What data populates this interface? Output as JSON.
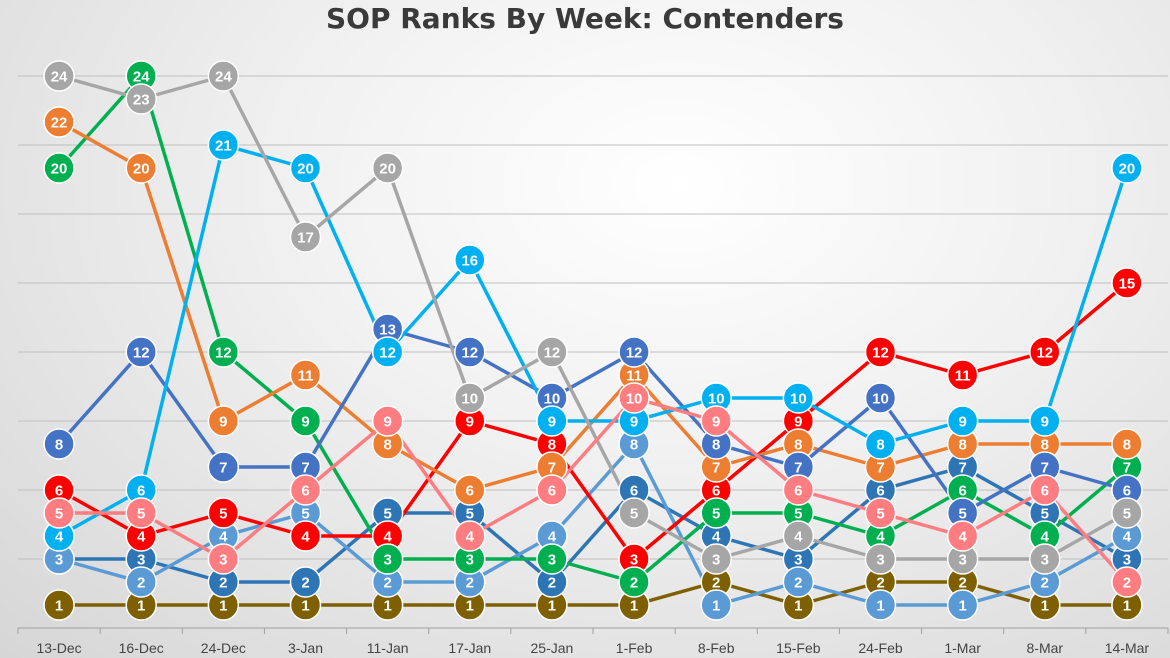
{
  "chart_data": {
    "type": "line",
    "title": "SOP Ranks By Week: Contenders",
    "xlabel": "",
    "ylabel": "",
    "categories": [
      "13-Dec",
      "16-Dec",
      "24-Dec",
      "3-Jan",
      "11-Jan",
      "17-Jan",
      "25-Jan",
      "1-Feb",
      "8-Feb",
      "15-Feb",
      "24-Feb",
      "1-Mar",
      "8-Mar",
      "14-Mar"
    ],
    "ylim": [
      0,
      25
    ],
    "grid": true,
    "legend": "none",
    "series": [
      {
        "color": "#7f6000",
        "values": [
          1,
          1,
          1,
          1,
          1,
          1,
          1,
          1,
          2,
          1,
          2,
          2,
          1,
          1
        ]
      },
      {
        "color": "#2e75b6",
        "values": [
          3,
          3,
          2,
          2,
          5,
          5,
          2,
          6,
          4,
          3,
          6,
          7,
          5,
          3
        ]
      },
      {
        "color": "#5b9bd5",
        "values": [
          3,
          2,
          4,
          5,
          2,
          2,
          4,
          8,
          1,
          2,
          1,
          1,
          2,
          4
        ]
      },
      {
        "color": "#ff0000",
        "values": [
          6,
          4,
          5,
          4,
          4,
          9,
          8,
          3,
          6,
          9,
          12,
          11,
          12,
          15
        ]
      },
      {
        "color": "#00b050",
        "values": [
          20,
          24,
          12,
          9,
          3,
          3,
          3,
          2,
          5,
          5,
          4,
          6,
          4,
          7
        ]
      },
      {
        "color": "#ed7d31",
        "values": [
          22,
          20,
          9,
          11,
          8,
          6,
          7,
          11,
          7,
          8,
          7,
          8,
          8,
          8
        ]
      },
      {
        "color": "#4472c4",
        "values": [
          8,
          12,
          7,
          7,
          13,
          12,
          10,
          12,
          8,
          7,
          10,
          5,
          7,
          6
        ]
      },
      {
        "color": "#00b0f0",
        "values": [
          4,
          6,
          21,
          20,
          12,
          16,
          9,
          9,
          10,
          10,
          8,
          9,
          9,
          20
        ]
      },
      {
        "color": "#a6a6a6",
        "values": [
          24,
          23,
          24,
          17,
          20,
          10,
          12,
          5,
          3,
          4,
          3,
          3,
          3,
          5
        ]
      },
      {
        "color": "#ff7c80",
        "values": [
          5,
          5,
          3,
          6,
          9,
          4,
          6,
          10,
          9,
          6,
          5,
          4,
          6,
          2
        ]
      }
    ]
  }
}
